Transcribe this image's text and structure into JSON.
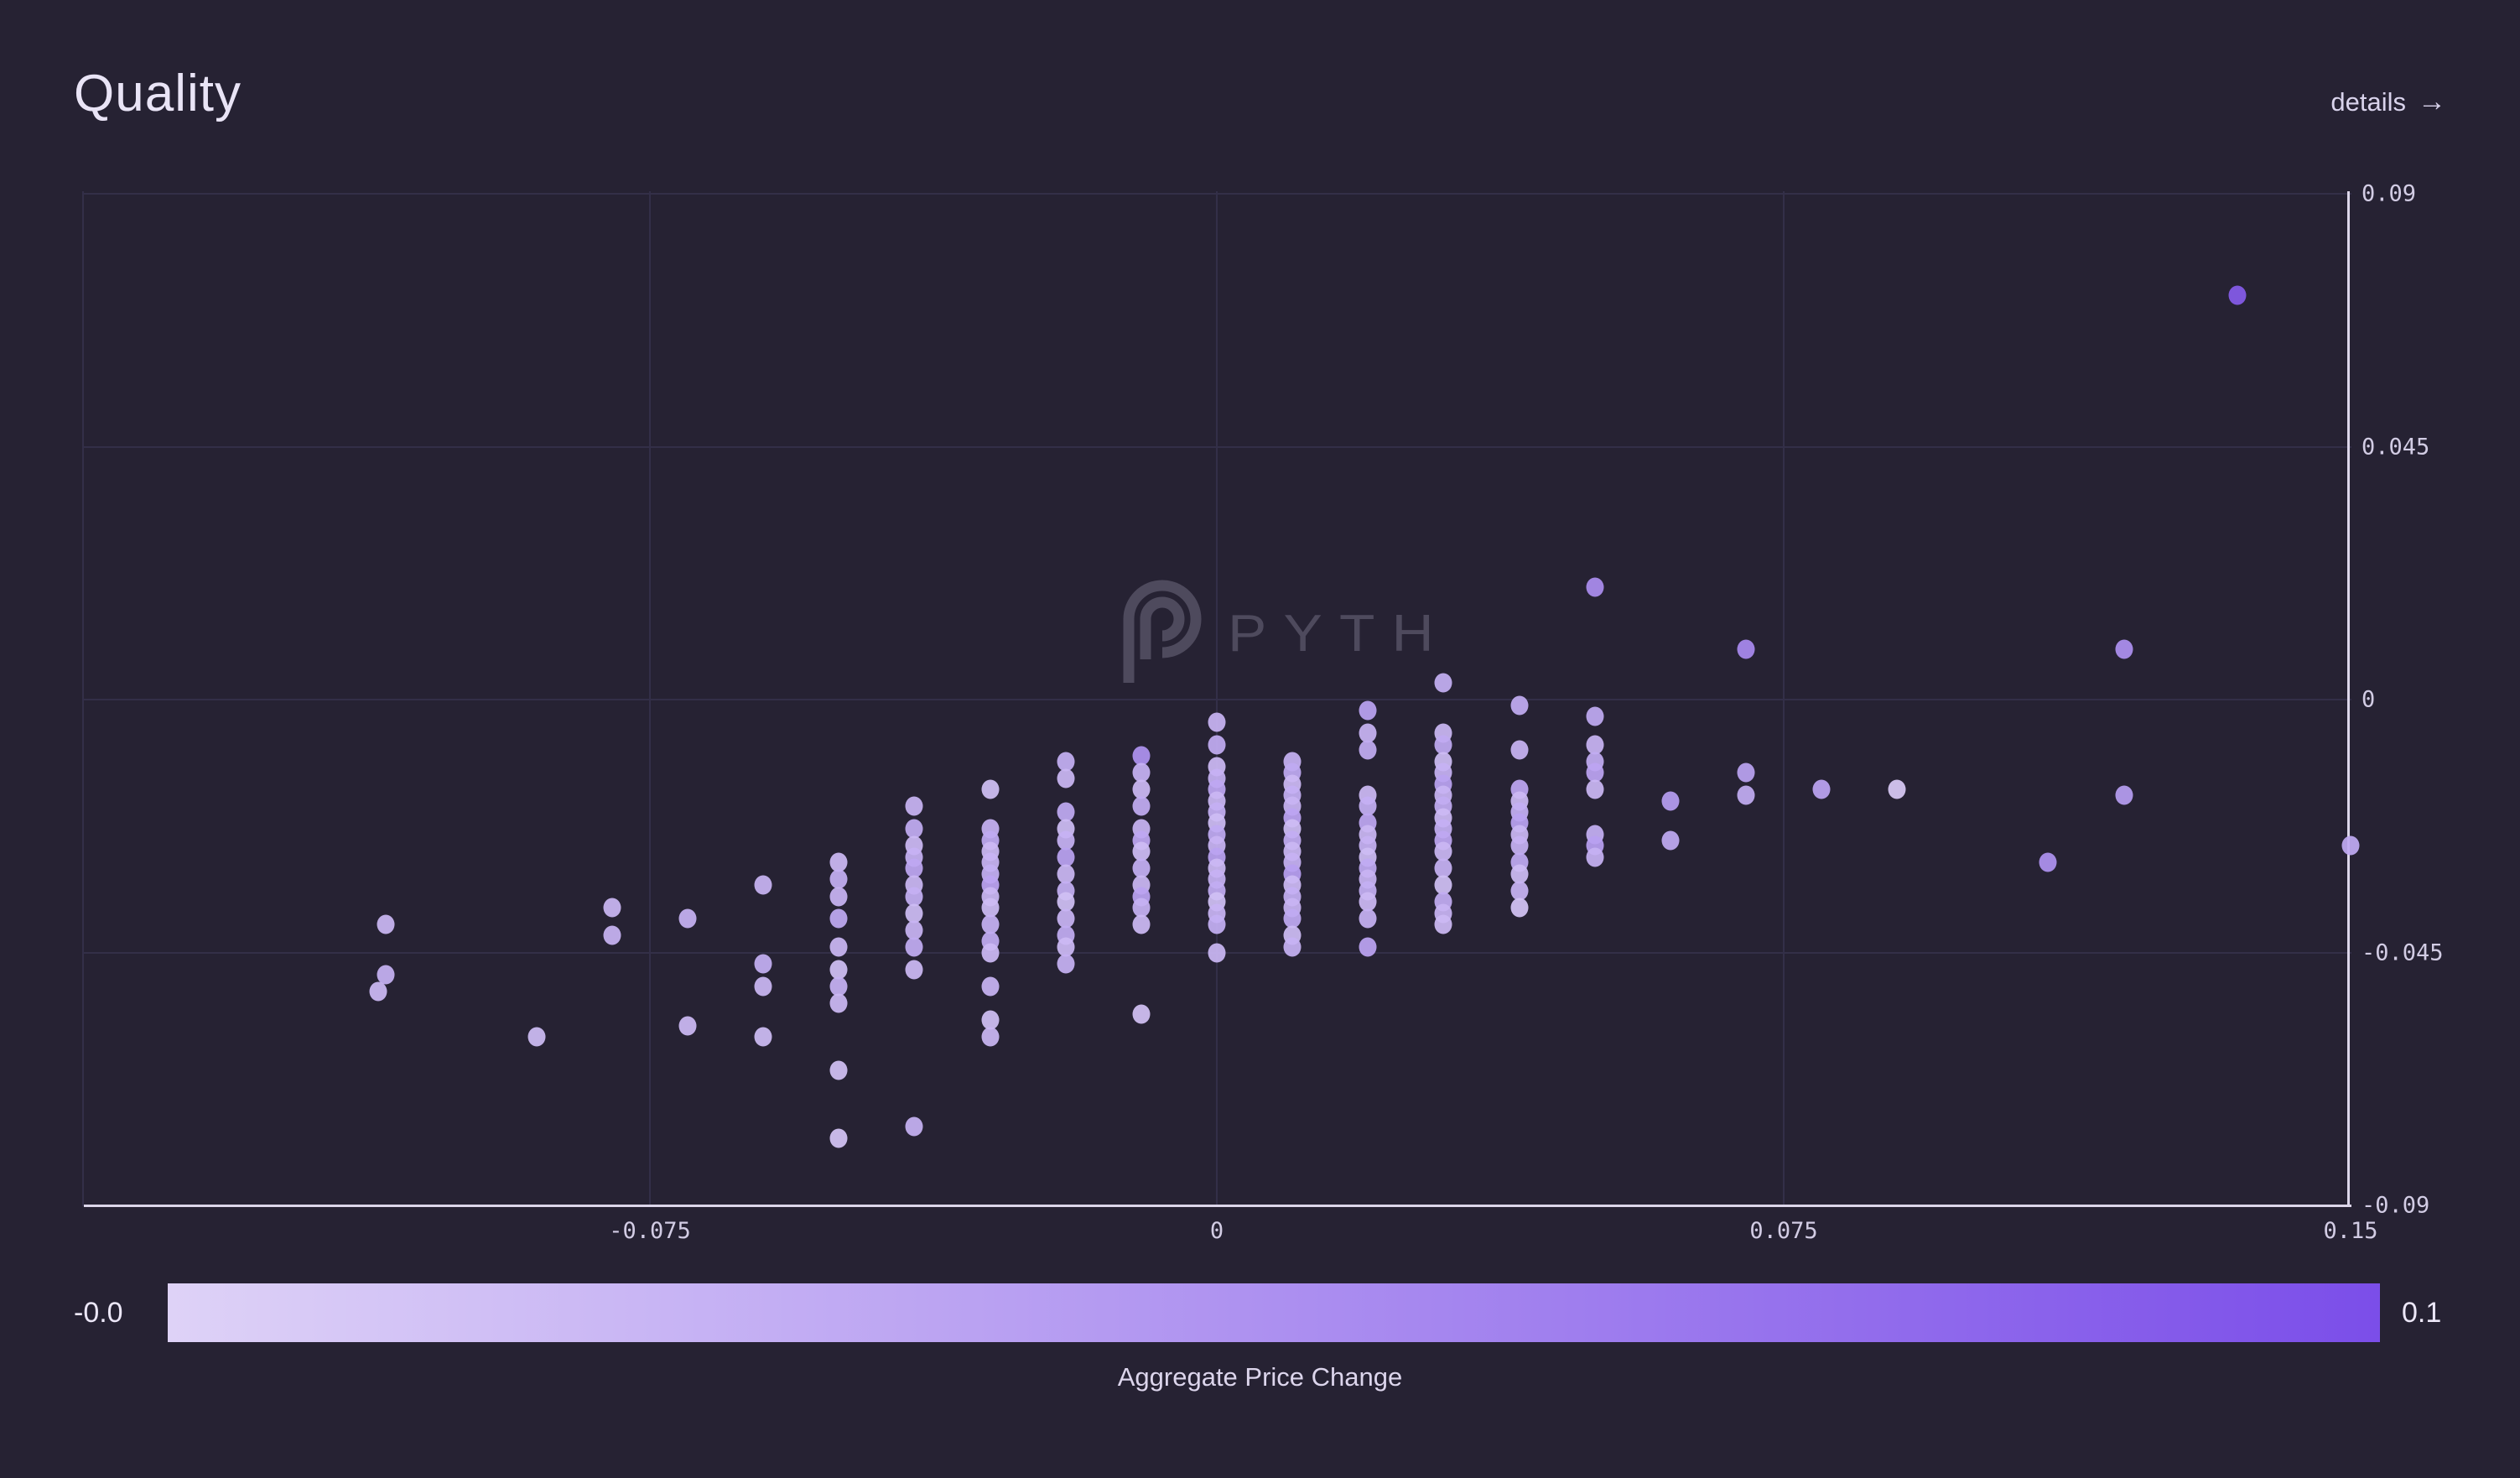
{
  "header": {
    "title": "Quality",
    "details_label": "details",
    "details_arrow": "→"
  },
  "watermark": {
    "text": "PYTH"
  },
  "chart_data": {
    "type": "scatter",
    "title": "Quality",
    "x_axis": {
      "range": [
        -0.15,
        0.15
      ],
      "ticks": [
        {
          "v": -0.075,
          "label": "-0.075"
        },
        {
          "v": 0,
          "label": "0"
        },
        {
          "v": 0.075,
          "label": "0.075"
        },
        {
          "v": 0.15,
          "label": "0.15"
        }
      ],
      "gridlines": [
        -0.15,
        -0.075,
        0,
        0.075
      ]
    },
    "y_axis": {
      "range": [
        -0.09,
        0.09
      ],
      "ticks": [
        {
          "v": 0.09,
          "label": "0.09"
        },
        {
          "v": 0.045,
          "label": "0.045"
        },
        {
          "v": 0,
          "label": "0"
        },
        {
          "v": -0.045,
          "label": "-0.045"
        },
        {
          "v": -0.09,
          "label": "-0.09"
        }
      ],
      "gridlines": [
        0.09,
        0.045,
        0,
        -0.045
      ]
    },
    "color_axis": {
      "label": "Aggregate Price Change",
      "min_label": "-0.0",
      "max_label": "0.1",
      "min": 0,
      "max": 0.1,
      "colors": [
        "#ded2f7",
        "#7b4ee9"
      ]
    },
    "legend": "none",
    "grid": "on",
    "series": [
      {
        "name": "symbols",
        "points": [
          [
            -0.11,
            -0.04,
            0.02
          ],
          [
            -0.11,
            -0.049,
            0.024
          ],
          [
            -0.111,
            -0.052,
            0.018
          ],
          [
            -0.09,
            -0.06,
            0.016
          ],
          [
            -0.08,
            -0.037,
            0.02
          ],
          [
            -0.08,
            -0.042,
            0.022
          ],
          [
            -0.07,
            -0.039,
            0.024
          ],
          [
            -0.07,
            -0.058,
            0.018
          ],
          [
            -0.06,
            -0.033,
            0.022
          ],
          [
            -0.06,
            -0.047,
            0.026
          ],
          [
            -0.06,
            -0.051,
            0.02
          ],
          [
            -0.06,
            -0.06,
            0.016
          ],
          [
            -0.05,
            -0.029,
            0.018
          ],
          [
            -0.05,
            -0.032,
            0.026
          ],
          [
            -0.05,
            -0.035,
            0.022
          ],
          [
            -0.05,
            -0.039,
            0.03
          ],
          [
            -0.05,
            -0.044,
            0.02
          ],
          [
            -0.05,
            -0.048,
            0.014
          ],
          [
            -0.05,
            -0.051,
            0.024
          ],
          [
            -0.05,
            -0.054,
            0.018
          ],
          [
            -0.05,
            -0.066,
            0.012
          ],
          [
            -0.05,
            -0.078,
            0.01
          ],
          [
            -0.04,
            -0.019,
            0.022
          ],
          [
            -0.04,
            -0.023,
            0.028
          ],
          [
            -0.04,
            -0.026,
            0.018
          ],
          [
            -0.04,
            -0.028,
            0.024
          ],
          [
            -0.04,
            -0.03,
            0.032
          ],
          [
            -0.04,
            -0.033,
            0.02
          ],
          [
            -0.04,
            -0.035,
            0.026
          ],
          [
            -0.04,
            -0.038,
            0.016
          ],
          [
            -0.04,
            -0.041,
            0.022
          ],
          [
            -0.04,
            -0.044,
            0.028
          ],
          [
            -0.04,
            -0.048,
            0.018
          ],
          [
            -0.04,
            -0.076,
            0.024
          ],
          [
            -0.03,
            -0.016,
            0.014
          ],
          [
            -0.03,
            -0.023,
            0.024
          ],
          [
            -0.03,
            -0.025,
            0.03
          ],
          [
            -0.03,
            -0.027,
            0.018
          ],
          [
            -0.03,
            -0.029,
            0.022
          ],
          [
            -0.03,
            -0.031,
            0.026
          ],
          [
            -0.03,
            -0.033,
            0.034
          ],
          [
            -0.03,
            -0.035,
            0.02
          ],
          [
            -0.03,
            -0.037,
            0.016
          ],
          [
            -0.03,
            -0.04,
            0.024
          ],
          [
            -0.03,
            -0.043,
            0.028
          ],
          [
            -0.03,
            -0.045,
            0.018
          ],
          [
            -0.03,
            -0.051,
            0.022
          ],
          [
            -0.03,
            -0.057,
            0.014
          ],
          [
            -0.03,
            -0.06,
            0.02
          ],
          [
            -0.02,
            -0.011,
            0.026
          ],
          [
            -0.02,
            -0.014,
            0.02
          ],
          [
            -0.02,
            -0.02,
            0.03
          ],
          [
            -0.02,
            -0.023,
            0.016
          ],
          [
            -0.02,
            -0.025,
            0.024
          ],
          [
            -0.02,
            -0.028,
            0.036
          ],
          [
            -0.02,
            -0.031,
            0.02
          ],
          [
            -0.02,
            -0.034,
            0.026
          ],
          [
            -0.02,
            -0.036,
            0.014
          ],
          [
            -0.02,
            -0.039,
            0.022
          ],
          [
            -0.02,
            -0.042,
            0.028
          ],
          [
            -0.02,
            -0.044,
            0.018
          ],
          [
            -0.02,
            -0.047,
            0.024
          ],
          [
            -0.01,
            -0.01,
            0.048
          ],
          [
            -0.01,
            -0.013,
            0.024
          ],
          [
            -0.01,
            -0.016,
            0.018
          ],
          [
            -0.01,
            -0.019,
            0.028
          ],
          [
            -0.01,
            -0.023,
            0.022
          ],
          [
            -0.01,
            -0.025,
            0.032
          ],
          [
            -0.01,
            -0.027,
            0.016
          ],
          [
            -0.01,
            -0.03,
            0.026
          ],
          [
            -0.01,
            -0.033,
            0.02
          ],
          [
            -0.01,
            -0.035,
            0.036
          ],
          [
            -0.01,
            -0.037,
            0.024
          ],
          [
            -0.01,
            -0.04,
            0.018
          ],
          [
            -0.01,
            -0.056,
            0.012
          ],
          [
            0.0,
            -0.004,
            0.022
          ],
          [
            0.0,
            -0.008,
            0.028
          ],
          [
            0.0,
            -0.012,
            0.018
          ],
          [
            0.0,
            -0.014,
            0.024
          ],
          [
            0.0,
            -0.016,
            0.032
          ],
          [
            0.0,
            -0.018,
            0.02
          ],
          [
            0.0,
            -0.02,
            0.026
          ],
          [
            0.0,
            -0.022,
            0.016
          ],
          [
            0.0,
            -0.024,
            0.03
          ],
          [
            0.0,
            -0.026,
            0.022
          ],
          [
            0.0,
            -0.028,
            0.036
          ],
          [
            0.0,
            -0.03,
            0.018
          ],
          [
            0.0,
            -0.032,
            0.024
          ],
          [
            0.0,
            -0.034,
            0.028
          ],
          [
            0.0,
            -0.036,
            0.014
          ],
          [
            0.0,
            -0.038,
            0.022
          ],
          [
            0.0,
            -0.04,
            0.026
          ],
          [
            0.0,
            -0.045,
            0.02
          ],
          [
            0.01,
            -0.011,
            0.024
          ],
          [
            0.01,
            -0.013,
            0.03
          ],
          [
            0.01,
            -0.015,
            0.018
          ],
          [
            0.01,
            -0.017,
            0.026
          ],
          [
            0.01,
            -0.019,
            0.022
          ],
          [
            0.01,
            -0.021,
            0.034
          ],
          [
            0.01,
            -0.023,
            0.016
          ],
          [
            0.01,
            -0.025,
            0.028
          ],
          [
            0.01,
            -0.027,
            0.02
          ],
          [
            0.01,
            -0.029,
            0.024
          ],
          [
            0.01,
            -0.031,
            0.038
          ],
          [
            0.01,
            -0.033,
            0.018
          ],
          [
            0.01,
            -0.035,
            0.026
          ],
          [
            0.01,
            -0.037,
            0.022
          ],
          [
            0.01,
            -0.039,
            0.03
          ],
          [
            0.01,
            -0.042,
            0.016
          ],
          [
            0.01,
            -0.044,
            0.024
          ],
          [
            0.02,
            -0.002,
            0.036
          ],
          [
            0.02,
            -0.006,
            0.022
          ],
          [
            0.02,
            -0.009,
            0.028
          ],
          [
            0.02,
            -0.017,
            0.018
          ],
          [
            0.02,
            -0.019,
            0.026
          ],
          [
            0.02,
            -0.022,
            0.032
          ],
          [
            0.02,
            -0.024,
            0.02
          ],
          [
            0.02,
            -0.026,
            0.024
          ],
          [
            0.02,
            -0.028,
            0.016
          ],
          [
            0.02,
            -0.03,
            0.03
          ],
          [
            0.02,
            -0.032,
            0.022
          ],
          [
            0.02,
            -0.034,
            0.026
          ],
          [
            0.02,
            -0.036,
            0.018
          ],
          [
            0.02,
            -0.039,
            0.024
          ],
          [
            0.02,
            -0.044,
            0.034
          ],
          [
            0.03,
            0.003,
            0.026
          ],
          [
            0.03,
            -0.006,
            0.02
          ],
          [
            0.03,
            -0.008,
            0.03
          ],
          [
            0.03,
            -0.011,
            0.016
          ],
          [
            0.03,
            -0.013,
            0.024
          ],
          [
            0.03,
            -0.015,
            0.036
          ],
          [
            0.03,
            -0.017,
            0.022
          ],
          [
            0.03,
            -0.019,
            0.028
          ],
          [
            0.03,
            -0.021,
            0.018
          ],
          [
            0.03,
            -0.023,
            0.026
          ],
          [
            0.03,
            -0.025,
            0.032
          ],
          [
            0.03,
            -0.027,
            0.02
          ],
          [
            0.03,
            -0.03,
            0.024
          ],
          [
            0.03,
            -0.033,
            0.014
          ],
          [
            0.03,
            -0.036,
            0.028
          ],
          [
            0.03,
            -0.038,
            0.022
          ],
          [
            0.03,
            -0.04,
            0.018
          ],
          [
            0.04,
            -0.001,
            0.028
          ],
          [
            0.04,
            -0.009,
            0.022
          ],
          [
            0.04,
            -0.016,
            0.032
          ],
          [
            0.04,
            -0.018,
            0.018
          ],
          [
            0.04,
            -0.02,
            0.026
          ],
          [
            0.04,
            -0.022,
            0.036
          ],
          [
            0.04,
            -0.024,
            0.02
          ],
          [
            0.04,
            -0.026,
            0.024
          ],
          [
            0.04,
            -0.029,
            0.03
          ],
          [
            0.04,
            -0.031,
            0.016
          ],
          [
            0.04,
            -0.034,
            0.022
          ],
          [
            0.04,
            -0.037,
            0.01
          ],
          [
            0.05,
            0.02,
            0.052
          ],
          [
            0.05,
            -0.003,
            0.03
          ],
          [
            0.05,
            -0.008,
            0.022
          ],
          [
            0.05,
            -0.011,
            0.028
          ],
          [
            0.05,
            -0.013,
            0.034
          ],
          [
            0.05,
            -0.016,
            0.02
          ],
          [
            0.05,
            -0.024,
            0.026
          ],
          [
            0.05,
            -0.026,
            0.038
          ],
          [
            0.05,
            -0.028,
            0.024
          ],
          [
            0.06,
            -0.018,
            0.04
          ],
          [
            0.06,
            -0.025,
            0.03
          ],
          [
            0.07,
            0.009,
            0.054
          ],
          [
            0.07,
            -0.013,
            0.036
          ],
          [
            0.07,
            -0.017,
            0.028
          ],
          [
            0.08,
            -0.016,
            0.034
          ],
          [
            0.09,
            -0.016,
            0.006
          ],
          [
            0.11,
            -0.029,
            0.048
          ],
          [
            0.12,
            0.009,
            0.05
          ],
          [
            0.12,
            -0.017,
            0.04
          ],
          [
            0.135,
            0.072,
            0.09
          ],
          [
            0.15,
            -0.026,
            0.03
          ]
        ]
      }
    ]
  }
}
